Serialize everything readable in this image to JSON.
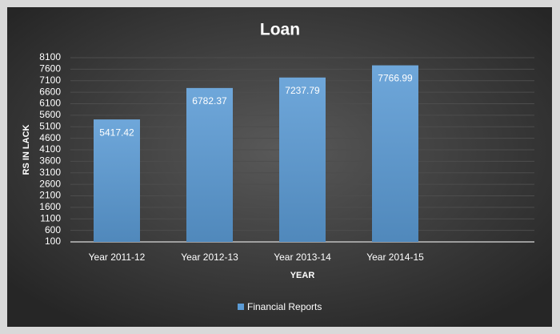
{
  "chart_data": {
    "type": "bar",
    "title": "Loan",
    "x_label": "YEAR",
    "y_label": "RS IN LACK",
    "categories": [
      "Year 2011-12",
      "Year 2012-13",
      "Year 2013-14",
      "Year 2014-15",
      null
    ],
    "series": [
      {
        "name": "Financial Reports",
        "color": "#5b9bd5",
        "values": [
          5417.42,
          6782.37,
          7237.79,
          7766.99,
          null
        ]
      }
    ],
    "ylim": [
      100,
      8100
    ],
    "yticks": [
      100,
      600,
      1100,
      1600,
      2100,
      2600,
      3100,
      3600,
      4100,
      4600,
      5100,
      5600,
      6100,
      6600,
      7100,
      7600,
      8100
    ],
    "grid": true,
    "legend": "bottom"
  }
}
